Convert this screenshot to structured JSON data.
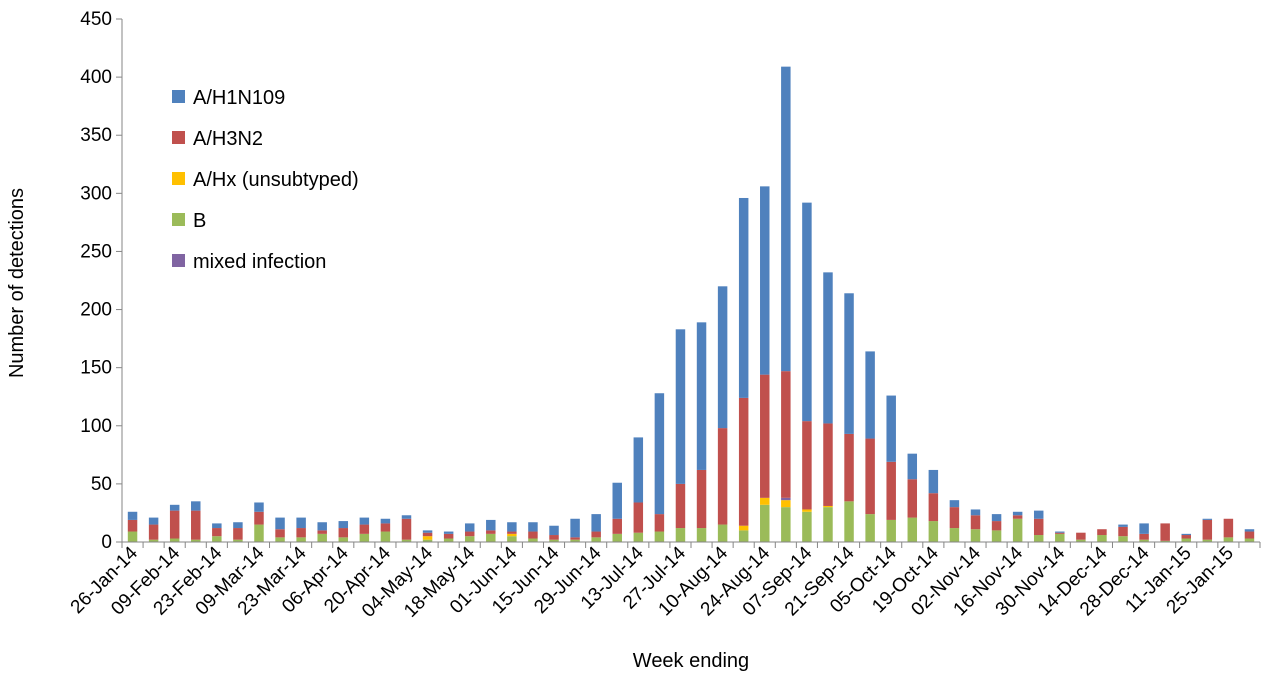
{
  "chart_data": {
    "type": "bar",
    "stacked": true,
    "title": "",
    "xlabel": "Week ending",
    "ylabel": "Number of detections",
    "ylim": [
      0,
      450
    ],
    "yticks": [
      0,
      50,
      100,
      150,
      200,
      250,
      300,
      350,
      400,
      450
    ],
    "grid": false,
    "legend_position": "top-left",
    "categories": [
      "26-Jan-14",
      "02-Feb-14",
      "09-Feb-14",
      "16-Feb-14",
      "23-Feb-14",
      "02-Mar-14",
      "09-Mar-14",
      "16-Mar-14",
      "23-Mar-14",
      "30-Mar-14",
      "06-Apr-14",
      "13-Apr-14",
      "20-Apr-14",
      "27-Apr-14",
      "04-May-14",
      "11-May-14",
      "18-May-14",
      "25-May-14",
      "01-Jun-14",
      "08-Jun-14",
      "15-Jun-14",
      "22-Jun-14",
      "29-Jun-14",
      "06-Jul-14",
      "13-Jul-14",
      "20-Jul-14",
      "27-Jul-14",
      "03-Aug-14",
      "10-Aug-14",
      "17-Aug-14",
      "24-Aug-14",
      "31-Aug-14",
      "07-Sep-14",
      "14-Sep-14",
      "21-Sep-14",
      "28-Sep-14",
      "05-Oct-14",
      "12-Oct-14",
      "19-Oct-14",
      "26-Oct-14",
      "02-Nov-14",
      "09-Nov-14",
      "16-Nov-14",
      "23-Nov-14",
      "30-Nov-14",
      "07-Dec-14",
      "14-Dec-14",
      "21-Dec-14",
      "28-Dec-14",
      "04-Jan-15",
      "11-Jan-15",
      "18-Jan-15",
      "25-Jan-15",
      "01-Feb-15"
    ],
    "shown_tick_labels": [
      "26-Jan-14",
      "09-Feb-14",
      "23-Feb-14",
      "09-Mar-14",
      "23-Mar-14",
      "06-Apr-14",
      "20-Apr-14",
      "04-May-14",
      "18-May-14",
      "01-Jun-14",
      "15-Jun-14",
      "29-Jun-14",
      "13-Jul-14",
      "27-Jul-14",
      "10-Aug-14",
      "24-Aug-14",
      "07-Sep-14",
      "21-Sep-14",
      "05-Oct-14",
      "19-Oct-14",
      "02-Nov-14",
      "16-Nov-14",
      "30-Nov-14",
      "14-Dec-14",
      "28-Dec-14",
      "11-Jan-15",
      "25-Jan-15"
    ],
    "series": [
      {
        "name": "B",
        "color": "#9BBB59",
        "values": [
          9,
          2,
          3,
          2,
          5,
          2,
          15,
          4,
          4,
          7,
          4,
          7,
          9,
          2,
          2,
          3,
          5,
          7,
          5,
          3,
          2,
          2,
          4,
          7,
          8,
          9,
          12,
          12,
          15,
          10,
          32,
          30,
          26,
          30,
          35,
          24,
          19,
          21,
          18,
          12,
          11,
          10,
          20,
          6,
          7,
          2,
          6,
          5,
          2,
          1,
          3,
          2,
          4,
          3
        ]
      },
      {
        "name": "A/Hx (unsubtyped)",
        "color": "#FFC000",
        "values": [
          0,
          0,
          0,
          0,
          0,
          0,
          0,
          0,
          0,
          0,
          0,
          0,
          0,
          0,
          3,
          0,
          0,
          0,
          2,
          0,
          0,
          0,
          0,
          0,
          0,
          0,
          0,
          0,
          0,
          4,
          6,
          6,
          2,
          1,
          0,
          0,
          0,
          0,
          0,
          0,
          0,
          0,
          0,
          0,
          0,
          0,
          0,
          0,
          0,
          0,
          0,
          0,
          0,
          0
        ]
      },
      {
        "name": "mixed infection",
        "color": "#8064A2",
        "values": [
          0,
          0,
          0,
          0,
          0,
          0,
          0,
          0,
          0,
          0,
          0,
          0,
          0,
          0,
          0,
          0,
          0,
          0,
          0,
          0,
          0,
          0,
          0,
          0,
          0,
          0,
          0,
          0,
          0,
          0,
          0,
          2,
          0,
          0,
          0,
          0,
          0,
          0,
          0,
          0,
          0,
          0,
          0,
          0,
          0,
          0,
          0,
          0,
          0,
          0,
          0,
          0,
          0,
          0
        ]
      },
      {
        "name": "A/H3N2",
        "color": "#C0504D",
        "values": [
          10,
          13,
          24,
          25,
          7,
          10,
          11,
          7,
          8,
          3,
          8,
          8,
          7,
          18,
          3,
          4,
          4,
          3,
          2,
          6,
          4,
          2,
          5,
          13,
          26,
          15,
          38,
          50,
          83,
          110,
          106,
          109,
          76,
          71,
          58,
          65,
          50,
          33,
          24,
          18,
          12,
          8,
          3,
          14,
          1,
          6,
          5,
          8,
          5,
          15,
          3,
          17,
          16,
          6
        ]
      },
      {
        "name": "A/H1N109",
        "color": "#4F81BD",
        "values": [
          7,
          6,
          5,
          8,
          4,
          5,
          8,
          10,
          9,
          7,
          6,
          6,
          4,
          3,
          2,
          2,
          7,
          9,
          8,
          8,
          8,
          16,
          15,
          31,
          56,
          104,
          133,
          127,
          122,
          172,
          162,
          262,
          188,
          130,
          121,
          75,
          57,
          22,
          20,
          6,
          5,
          6,
          3,
          7,
          1,
          0,
          0,
          2,
          9,
          0,
          1,
          1,
          0,
          2
        ]
      }
    ]
  },
  "legend": [
    {
      "label": "A/H1N109",
      "color": "#4F81BD"
    },
    {
      "label": "A/H3N2",
      "color": "#C0504D"
    },
    {
      "label": "A/Hx (unsubtyped)",
      "color": "#FFC000"
    },
    {
      "label": "B",
      "color": "#9BBB59"
    },
    {
      "label": "mixed infection",
      "color": "#8064A2"
    }
  ]
}
